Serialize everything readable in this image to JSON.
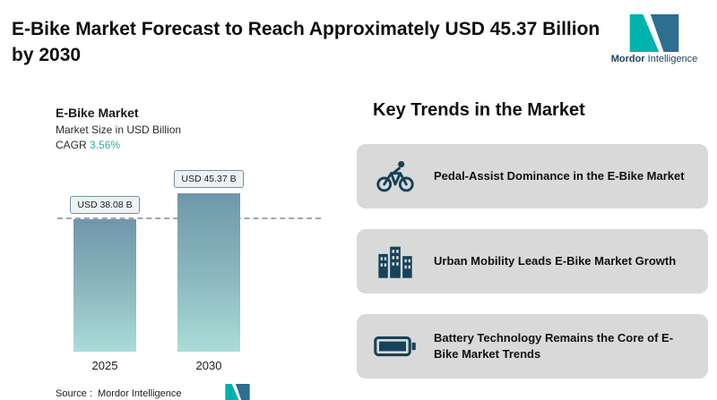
{
  "header": {
    "title": "E-Bike Market Forecast to Reach Approximately USD 45.37 Billion by 2030",
    "logo": {
      "name_bold": "Mordor",
      "name_regular": "Intelligence"
    }
  },
  "chart": {
    "title": "E-Bike Market",
    "subtitle": "Market Size in USD Billion",
    "cagr_label": "CAGR",
    "cagr_value": "3.56%",
    "source_label": "Source :",
    "source_value": "Mordor Intelligence"
  },
  "chart_data": {
    "type": "bar",
    "title": "E-Bike Market",
    "ylabel": "Market Size in USD Billion",
    "categories": [
      "2025",
      "2030"
    ],
    "values": [
      38.08,
      45.37
    ],
    "value_labels": [
      "USD 38.08 B",
      "USD 45.37 B"
    ],
    "cagr_percent": 3.56,
    "ylim": [
      0,
      50
    ],
    "grid": false,
    "annotations": [
      "horizontal dashed reference line at 2025 value (38.08)"
    ]
  },
  "trends": {
    "heading": "Key Trends in the Market",
    "items": [
      {
        "icon": "cyclist-icon",
        "label": "Pedal-Assist Dominance in the E-Bike Market"
      },
      {
        "icon": "buildings-icon",
        "label": "Urban Mobility Leads E-Bike Market Growth"
      },
      {
        "icon": "battery-icon",
        "label": "Battery Technology Remains the Core of E-Bike Market Trends"
      }
    ]
  },
  "colors": {
    "accent_teal": "#2fa9a4",
    "bar_gradient_top": "#6f97aa",
    "bar_gradient_bottom": "#abdcd8",
    "trend_card_bg": "#d9d9d9",
    "icon_navy": "#16425b",
    "logo_teal": "#00b2ae",
    "logo_blue": "#2d6e91",
    "text_dark": "#111111"
  }
}
